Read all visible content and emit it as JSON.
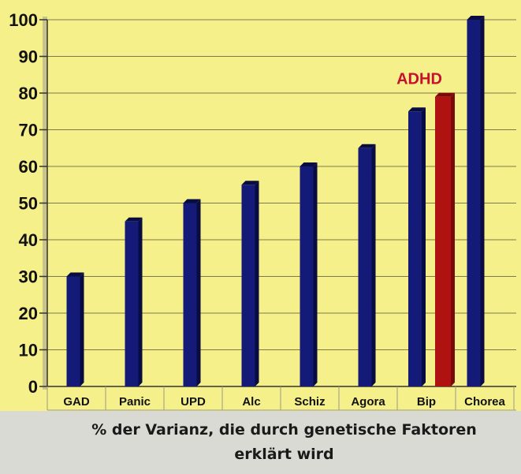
{
  "chart_data": {
    "type": "bar",
    "categories": [
      "GAD",
      "Panic",
      "UPD",
      "Alc",
      "Schiz",
      "Agora",
      "Bip",
      "ADHD",
      "Chorea"
    ],
    "values": [
      30,
      45,
      50,
      55,
      60,
      65,
      75,
      79,
      100
    ],
    "x_tick_labels": [
      "GAD",
      "Panic",
      "UPD",
      "Alc",
      "Schiz",
      "Agora",
      "Bip",
      "Chorea"
    ],
    "ylim": [
      0,
      100
    ],
    "yticks": [
      0,
      10,
      20,
      30,
      40,
      50,
      60,
      70,
      80,
      90,
      100
    ],
    "grid": true,
    "annotations": [
      {
        "text": "ADHD",
        "category": "ADHD",
        "color": "#c8102e"
      }
    ],
    "colors": {
      "default_bar": "#141a78",
      "highlight_bar": "#b01212",
      "background": "#f6f08a",
      "grid": "#7c7a4c"
    }
  },
  "caption": {
    "line1": "% der Varianz, die durch genetische Faktoren",
    "line2": "erklärt wird"
  }
}
